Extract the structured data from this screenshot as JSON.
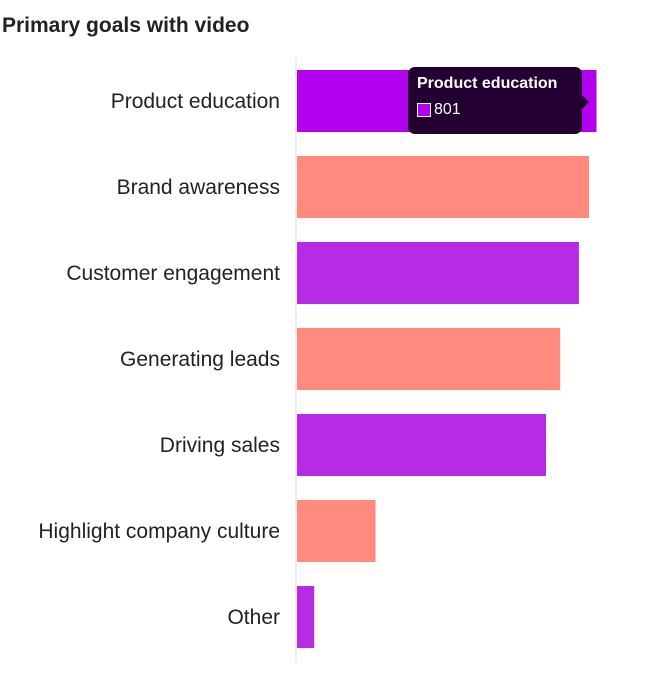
{
  "chart_data": {
    "type": "bar",
    "orientation": "horizontal",
    "title": "Primary goals with video",
    "categories": [
      "Product education",
      "Brand awareness",
      "Customer engagement",
      "Generating leads",
      "Driving sales",
      "Highlight company culture",
      "Other"
    ],
    "values": [
      801,
      781,
      754,
      704,
      666,
      210,
      46
    ],
    "xlim": [
      0,
      805
    ],
    "grid": false,
    "bar_colors": [
      "#b300ee",
      "#ff8a7d",
      "#b82be5",
      "#ff8a7d",
      "#b82be5",
      "#ff8a7d",
      "#b82be5"
    ],
    "tooltip": {
      "category": "Product education",
      "value": "801",
      "background": "#240032"
    }
  }
}
